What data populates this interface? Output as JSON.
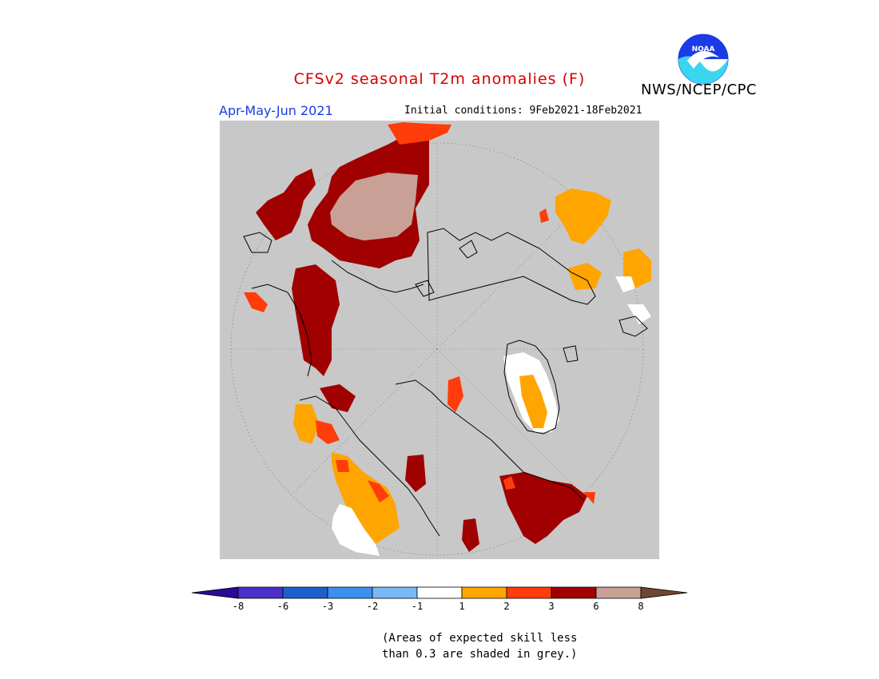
{
  "title": "CFSv2 seasonal T2m anomalies (F)",
  "organization": "NWS/NCEP/CPC",
  "logo_text": "NOAA",
  "season": "Apr-May-Jun 2021",
  "initial_conditions": "Initial conditions: 9Feb2021-18Feb2021",
  "note_line1": "(Areas of expected skill less",
  "note_line2": "than 0.3 are shaded in grey.)",
  "colors": {
    "map_background": "#c8c8c8",
    "title": "#d40000",
    "season": "#1a3be6"
  },
  "legend": {
    "tick_labels": [
      "-8",
      "-6",
      "-3",
      "-2",
      "-1",
      "1",
      "2",
      "3",
      "6",
      "8"
    ],
    "bins": [
      {
        "range": "< -8",
        "color": "#2b0a96"
      },
      {
        "range": "-8 to -6",
        "color": "#4a2fc8"
      },
      {
        "range": "-6 to -3",
        "color": "#1e5fcf"
      },
      {
        "range": "-3 to -2",
        "color": "#3b8ff0"
      },
      {
        "range": "-2 to -1",
        "color": "#7ab8f5"
      },
      {
        "range": "-1 to 1",
        "color": "#ffffff"
      },
      {
        "range": "1 to 2",
        "color": "#ffa500"
      },
      {
        "range": "2 to 3",
        "color": "#ff3c0a"
      },
      {
        "range": "3 to 6",
        "color": "#a00000"
      },
      {
        "range": "6 to 8",
        "color": "#c8a096"
      },
      {
        "range": "> 8",
        "color": "#6e4632"
      }
    ]
  }
}
